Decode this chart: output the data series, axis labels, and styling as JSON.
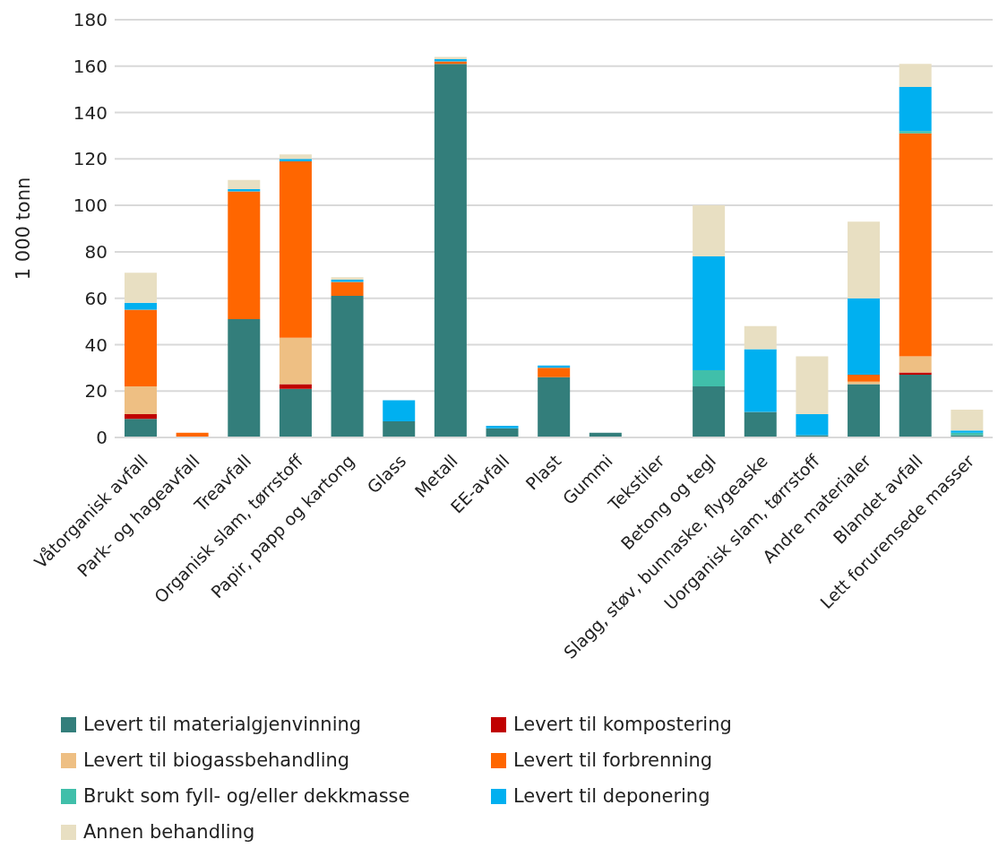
{
  "chart_data": {
    "type": "bar",
    "stacked": true,
    "ylabel": "1 000 tonn",
    "categories": [
      "Våtorganisk avfall",
      "Park- og hageavfall",
      "Treavfall",
      "Organisk slam, tørrstoff",
      "Papir, papp og kartong",
      "Glass",
      "Metall",
      "EE-avfall",
      "Plast",
      "Gummi",
      "Tekstiler",
      "Betong og tegl",
      "Slagg, støv, bunnaske, flygeaske",
      "Uorganisk slam, tørrstoff",
      "Andre materialer",
      "Blandet avfall",
      "Lett forurensede masser"
    ],
    "series": [
      {
        "name": "Levert til materialgjenvinning",
        "color": "#337e7b",
        "values": [
          8,
          0,
          51,
          21,
          61,
          7,
          161,
          4,
          26,
          2,
          0,
          22,
          11,
          1,
          23,
          27,
          1
        ]
      },
      {
        "name": "Levert til kompostering",
        "color": "#c00000",
        "values": [
          2,
          0,
          0,
          2,
          0,
          0,
          0,
          0,
          0,
          0,
          0,
          0,
          0,
          0,
          0,
          1,
          0
        ]
      },
      {
        "name": "Levert til biogassbehandling",
        "color": "#eebf83",
        "values": [
          12,
          0,
          0,
          20,
          0,
          0,
          0,
          0,
          0,
          0,
          0,
          0,
          0,
          0,
          1,
          7,
          0
        ]
      },
      {
        "name": "Levert til forbrenning",
        "color": "#ff6600",
        "values": [
          33,
          2,
          55,
          76,
          6,
          0,
          1,
          0,
          4,
          0,
          0,
          0,
          0,
          0,
          3,
          96,
          0
        ]
      },
      {
        "name": "Brukt som fyll- og/eller dekkmasse",
        "color": "#40bfaa",
        "values": [
          0,
          0,
          0,
          0,
          0,
          0,
          0,
          0,
          0,
          0,
          0,
          7,
          0,
          0,
          0,
          1,
          1
        ]
      },
      {
        "name": "Levert til deponering",
        "color": "#00b0f0",
        "values": [
          3,
          0,
          1,
          1,
          1,
          9,
          1,
          1,
          1,
          0,
          0,
          49,
          27,
          9,
          33,
          19,
          1
        ]
      },
      {
        "name": "Annen behandling",
        "color": "#e8dfc2",
        "values": [
          13,
          0,
          4,
          2,
          1,
          0,
          1,
          0,
          0,
          0,
          0,
          22,
          10,
          25,
          33,
          10,
          9
        ]
      }
    ],
    "ylim": [
      0,
      180
    ],
    "yticks": [
      0,
      20,
      40,
      60,
      80,
      100,
      120,
      140,
      160,
      180
    ],
    "grid": "y",
    "legend": "bottom"
  }
}
